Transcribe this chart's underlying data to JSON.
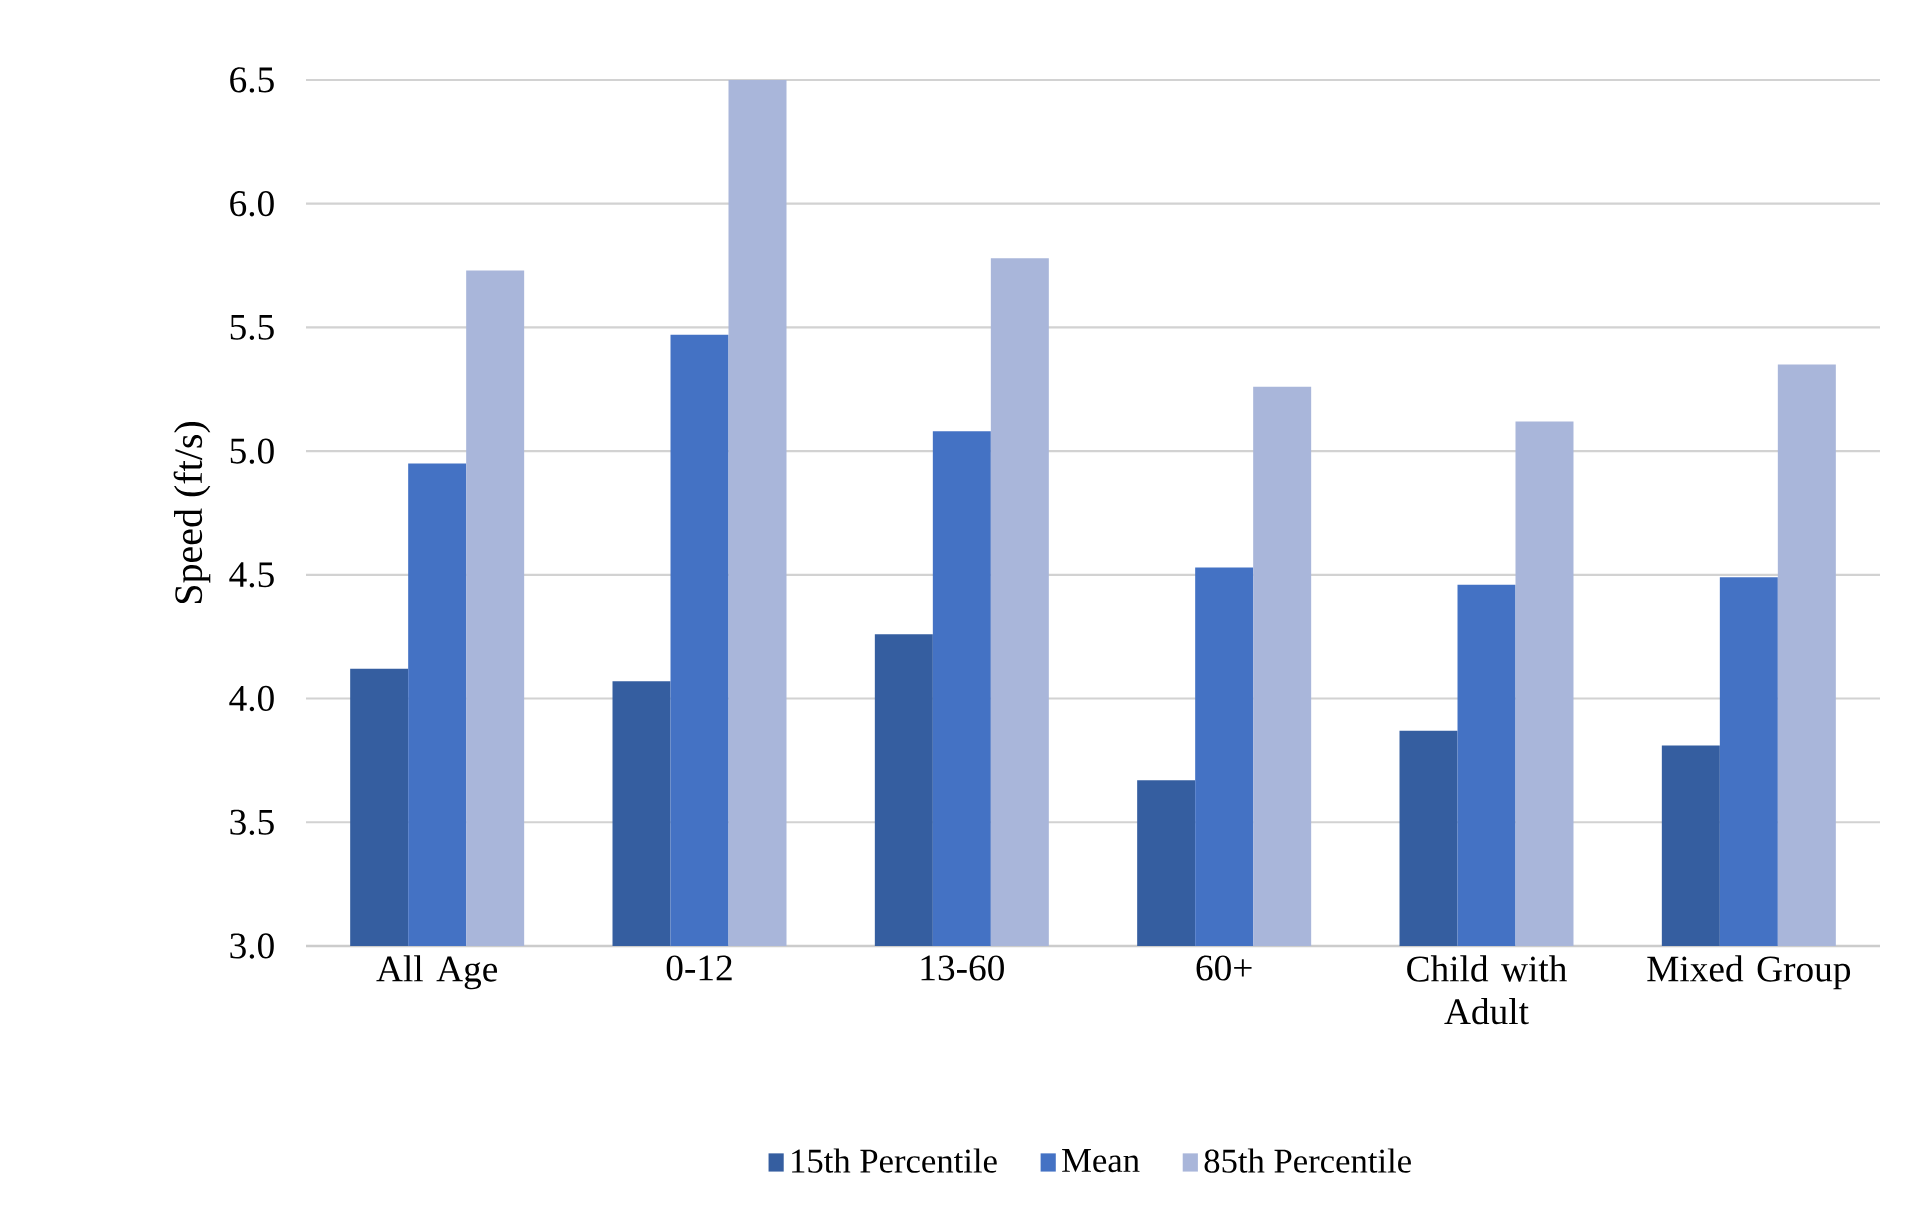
{
  "chart_data": {
    "type": "bar",
    "ylabel": "Speed (ft/s)",
    "categories": [
      "All Age",
      "0-12",
      "13-60",
      "60+",
      "Child with Adult",
      "Mixed Group"
    ],
    "series": [
      {
        "name": "15th Percentile",
        "color": "#355ea0",
        "values": [
          4.12,
          4.07,
          4.26,
          3.67,
          3.87,
          3.81
        ]
      },
      {
        "name": "Mean",
        "color": "#4472c4",
        "values": [
          4.95,
          5.47,
          5.08,
          4.53,
          4.46,
          4.49
        ]
      },
      {
        "name": "85th Percentile",
        "color": "#a9b6da",
        "values": [
          5.73,
          6.5,
          5.78,
          5.26,
          5.12,
          5.35
        ]
      }
    ],
    "ylim": [
      3.0,
      6.5
    ],
    "yticks": [
      {
        "value": 3.0,
        "label": "3.0"
      },
      3.5,
      {
        "value": 4.0,
        "label": "4.0"
      },
      4.5,
      {
        "value": 5.0,
        "label": "5.0"
      },
      5.5,
      {
        "value": 6.0,
        "label": "6.0"
      },
      6.5
    ],
    "grid": "y",
    "legend": "bottom"
  }
}
